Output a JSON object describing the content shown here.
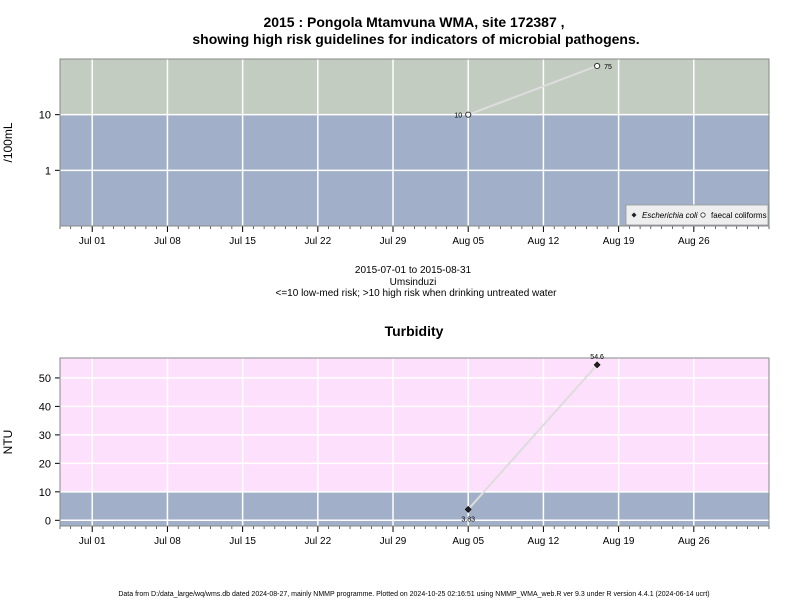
{
  "chart_data": [
    {
      "type": "line",
      "title_line1": "2015 : Pongola Mtamvuna WMA, site 172387 ,",
      "title_line2": "showing high risk guidelines for indicators of microbial pathogens.",
      "ylabel": "/100mL",
      "y_scale": "log",
      "ylim": [
        0.1,
        100
      ],
      "yticks": [
        "1",
        "10"
      ],
      "x_ticks": [
        "Jul 01",
        "Jul 08",
        "Jul 15",
        "Jul 22",
        "Jul 29",
        "Aug 05",
        "Aug 12",
        "Aug 19",
        "Aug 26"
      ],
      "xlim": [
        "2015-06-28",
        "2015-09-02"
      ],
      "risk_threshold": 10,
      "risk_colors": {
        "low": "#a1b0c8",
        "high": "#c3ccc0"
      },
      "series": [
        {
          "name": "faecal coliforms",
          "x": [
            "2015-08-05",
            "2015-08-17"
          ],
          "y": [
            10,
            75
          ],
          "labels": [
            "10",
            "75"
          ]
        }
      ],
      "legend": [
        "Escherichia coli",
        "faecal coliforms"
      ],
      "legend_position": "bottom-right",
      "grid": true,
      "subtitle_lines": [
        "2015-07-01 to 2015-08-31",
        "Umsinduzi",
        "<=10 low-med risk; >10 high risk when drinking untreated water"
      ]
    },
    {
      "type": "line",
      "title": "Turbidity",
      "ylabel": "NTU",
      "ylim": [
        -2,
        57
      ],
      "yticks": [
        "0",
        "10",
        "20",
        "30",
        "40",
        "50"
      ],
      "x_ticks": [
        "Jul 01",
        "Jul 08",
        "Jul 15",
        "Jul 22",
        "Jul 29",
        "Aug 05",
        "Aug 12",
        "Aug 19",
        "Aug 26"
      ],
      "xlim": [
        "2015-06-28",
        "2015-09-02"
      ],
      "risk_threshold": 10,
      "risk_colors": {
        "low": "#a1b0c8",
        "high": "#fde0fb"
      },
      "series": [
        {
          "name": "",
          "x": [
            "2015-08-05",
            "2015-08-17"
          ],
          "y": [
            3.83,
            54.6
          ],
          "labels": [
            "3.83",
            "54.6"
          ]
        }
      ],
      "grid": true
    }
  ],
  "footer": "Data from D:/data_large/wq/wms.db dated 2024-08-27, mainly NMMP programme. Plotted on 2024-10-25 02:16:51 using NMMP_WMA_web.R ver 9.3 under R version 4.4.1 (2024-06-14 ucrt)"
}
